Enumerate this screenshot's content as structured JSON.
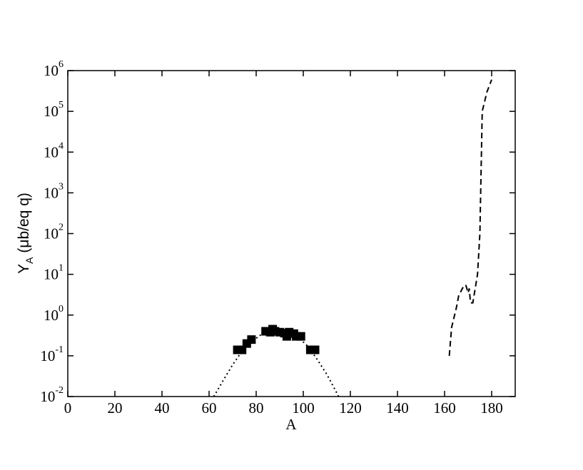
{
  "chart_data": {
    "type": "line",
    "xlabel": "A",
    "ylabel": {
      "text": "Y",
      "sub": "A",
      "rest": "(μb/eq q)"
    },
    "xlim": [
      0,
      190
    ],
    "xticks": [
      0,
      20,
      40,
      60,
      80,
      100,
      120,
      140,
      160,
      180
    ],
    "ylim": [
      0.01,
      1000000
    ],
    "log_y": true,
    "yticks": [
      {
        "value": 0.01,
        "label": "10",
        "power": "-2"
      },
      {
        "value": 0.1,
        "label": "10",
        "power": "-1"
      },
      {
        "value": 1,
        "label": "10",
        "power": "0"
      },
      {
        "value": 10,
        "label": "10",
        "power": "1"
      },
      {
        "value": 100,
        "label": "10",
        "power": "2"
      },
      {
        "value": 1000,
        "label": "10",
        "power": "3"
      },
      {
        "value": 10000,
        "label": "10",
        "power": "4"
      },
      {
        "value": 100000,
        "label": "10",
        "power": "5"
      },
      {
        "value": 1000000,
        "label": "10",
        "power": "6"
      }
    ],
    "series": [
      {
        "color": "#000000",
        "style": "markers",
        "x": [
          72,
          74,
          76,
          78,
          84,
          86,
          87,
          88,
          90,
          92,
          93,
          94,
          96,
          97,
          99,
          103,
          105
        ],
        "values": [
          0.14,
          0.14,
          0.2,
          0.25,
          0.4,
          0.38,
          0.45,
          0.4,
          0.38,
          0.36,
          0.3,
          0.38,
          0.35,
          0.3,
          0.3,
          0.14,
          0.14
        ]
      },
      {
        "color": "#000000",
        "style": "dotted",
        "x": [
          62,
          66,
          70,
          74,
          78,
          82,
          86,
          90,
          94,
          98,
          102,
          106,
          110,
          114,
          115
        ],
        "values": [
          0.01,
          0.025,
          0.06,
          0.13,
          0.22,
          0.33,
          0.4,
          0.4,
          0.36,
          0.28,
          0.17,
          0.08,
          0.035,
          0.013,
          0.01
        ]
      },
      {
        "color": "#000000",
        "style": "dashed",
        "x": [
          162,
          163,
          165,
          166,
          168,
          169,
          170,
          170.5,
          171,
          172,
          174,
          175,
          176,
          178,
          180
        ],
        "values": [
          0.1,
          0.5,
          1.5,
          3,
          5,
          5.5,
          3.5,
          4.5,
          2,
          2,
          10,
          100,
          100000,
          300000,
          600000
        ]
      }
    ]
  }
}
